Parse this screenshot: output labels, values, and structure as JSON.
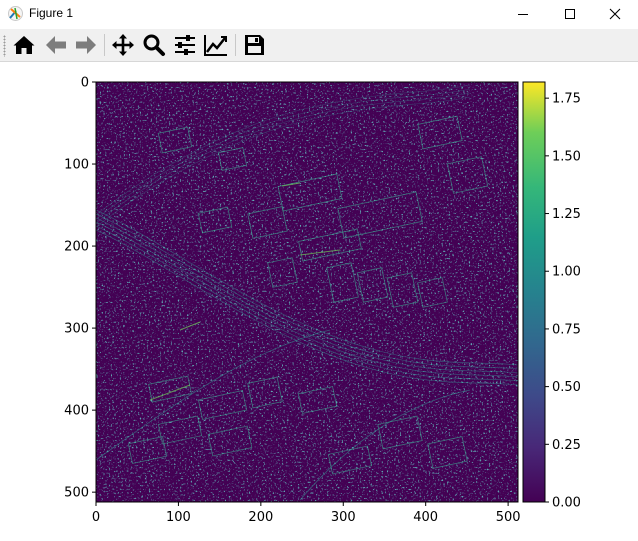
{
  "window": {
    "title": "Figure 1"
  },
  "window_controls": [
    "minimize-icon",
    "maximize-icon",
    "close-icon"
  ],
  "toolbar": {
    "buttons": [
      {
        "name": "home-icon"
      },
      {
        "name": "back-icon"
      },
      {
        "name": "forward-icon"
      },
      {
        "name": "pan-icon"
      },
      {
        "name": "zoom-icon"
      },
      {
        "name": "subplots-config-icon"
      },
      {
        "name": "edit-curves-icon"
      },
      {
        "name": "save-icon"
      }
    ]
  },
  "chart_data": {
    "type": "heatmap",
    "title": "",
    "xlabel": "",
    "ylabel": "",
    "xlim": [
      0,
      512
    ],
    "ylim": [
      512,
      0
    ],
    "x_ticks": [
      "0",
      "100",
      "200",
      "300",
      "400",
      "500"
    ],
    "y_ticks": [
      "0",
      "100",
      "200",
      "300",
      "400",
      "500"
    ],
    "colormap": "viridis",
    "colorbar": {
      "range": [
        0,
        1.82
      ],
      "ticks": [
        "0.00",
        "0.25",
        "0.50",
        "0.75",
        "1.00",
        "1.25",
        "1.50",
        "1.75"
      ]
    },
    "image_description": "edge-magnitude map of aerial view of urban area; mostly dark purple background with bright cyan/green edges of buildings, roads and railway tracks"
  }
}
